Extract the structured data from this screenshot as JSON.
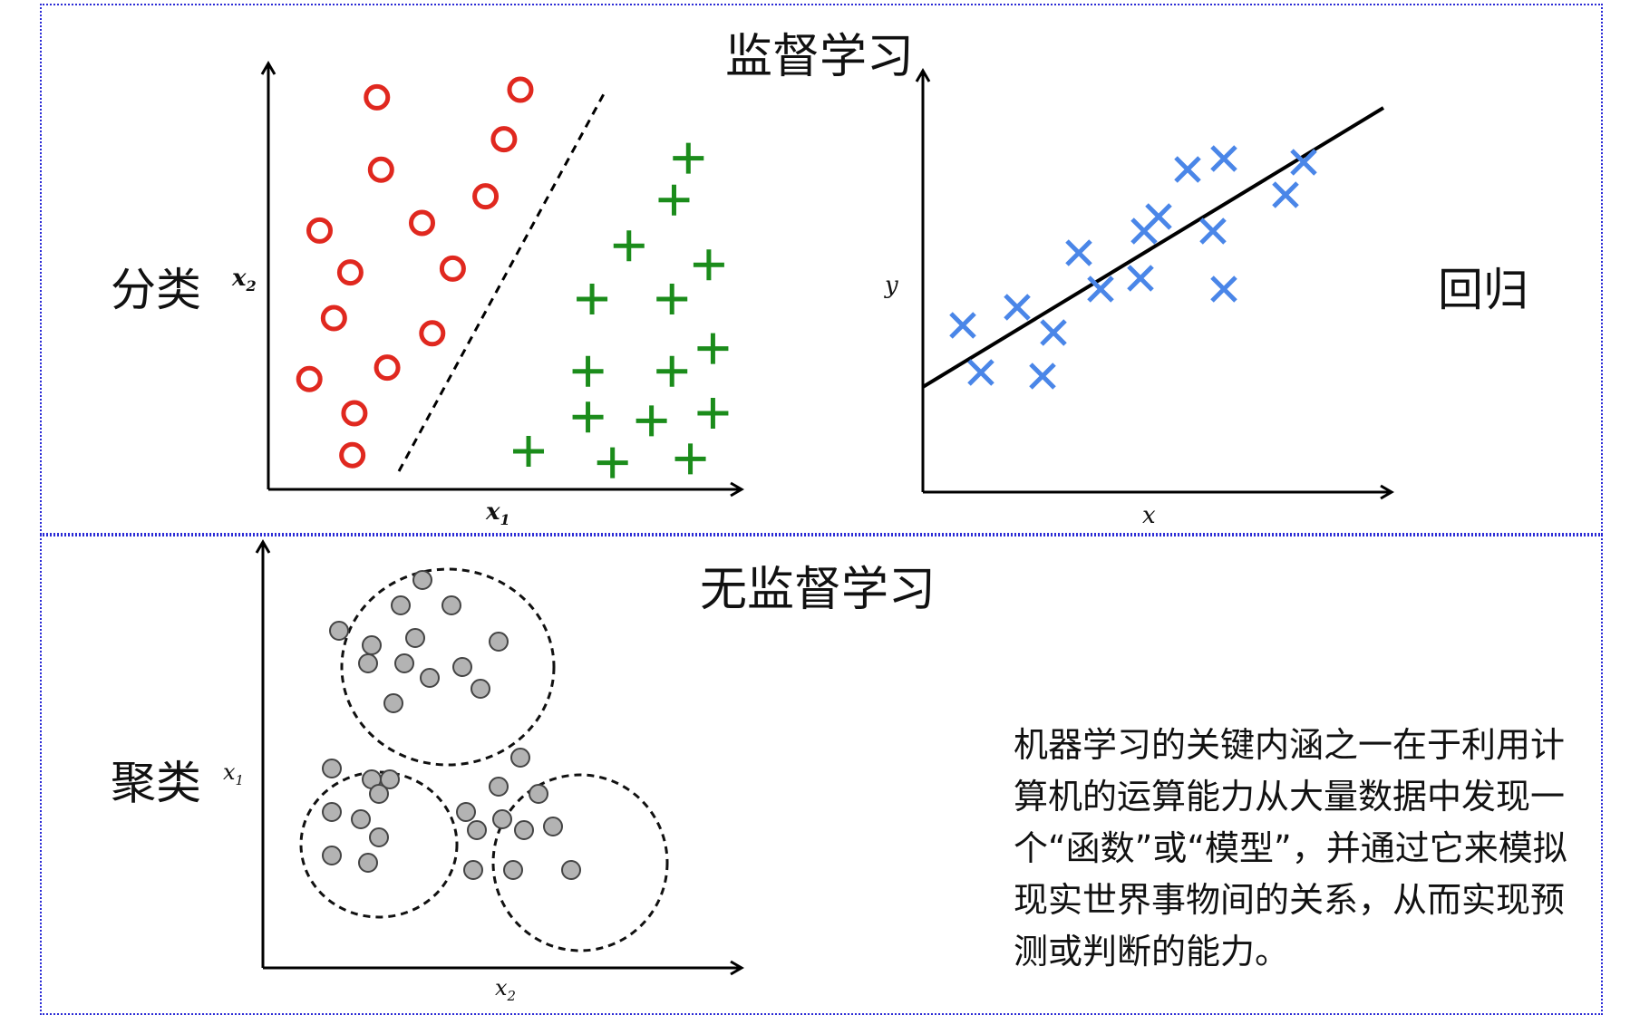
{
  "sections": {
    "supervised_title": "监督学习",
    "unsupervised_title": "无监督学习"
  },
  "classification": {
    "label": "分类",
    "x_label": "x",
    "x_sub": "1",
    "y_label": "x",
    "y_sub": "2",
    "class_circle_color": "#e0281f",
    "class_plus_color": "#1b8c1b"
  },
  "regression": {
    "label": "回归",
    "x_label": "x",
    "y_label": "y",
    "marker_color": "#4a86e8"
  },
  "clustering": {
    "label": "聚类",
    "x_label": "x",
    "x_sub": "2",
    "y_label": "x",
    "y_sub": "1",
    "point_color": "#b3b3b3"
  },
  "description": "机器学习的关键内涵之一在于利用计算机的运算能力从大量数据中发现一个“函数”或“模型”，并通过它来模拟现实世界事物间的关系，从而实现预测或判断的能力。",
  "chart_data": [
    {
      "type": "scatter",
      "title": "",
      "xlabel": "x1",
      "ylabel": "x2",
      "series": [
        {
          "name": "",
          "marker": "circle",
          "points": [
            [
              5.3,
              10.3
            ],
            [
              12.3,
              10.5
            ],
            [
              5.5,
              8.4
            ],
            [
              11.5,
              9.2
            ],
            [
              10.6,
              7.7
            ],
            [
              2.5,
              6.8
            ],
            [
              7.5,
              7.0
            ],
            [
              4.0,
              5.7
            ],
            [
              9.0,
              5.8
            ],
            [
              3.2,
              4.5
            ],
            [
              8.0,
              4.1
            ],
            [
              2.0,
              2.9
            ],
            [
              5.8,
              3.2
            ],
            [
              4.2,
              2.0
            ],
            [
              4.1,
              0.9
            ]
          ]
        },
        {
          "name": "",
          "marker": "plus",
          "points": [
            [
              20.5,
              8.7
            ],
            [
              19.8,
              7.6
            ],
            [
              17.6,
              6.4
            ],
            [
              21.5,
              5.9
            ],
            [
              15.8,
              5.0
            ],
            [
              19.7,
              5.0
            ],
            [
              21.7,
              3.7
            ],
            [
              15.6,
              3.1
            ],
            [
              19.7,
              3.1
            ],
            [
              15.6,
              1.9
            ],
            [
              18.7,
              1.8
            ],
            [
              21.7,
              2.0
            ],
            [
              12.7,
              1.0
            ],
            [
              16.8,
              0.7
            ],
            [
              20.6,
              0.8
            ]
          ]
        }
      ],
      "decision_boundary": "dashed line"
    },
    {
      "type": "scatter",
      "title": "",
      "xlabel": "x",
      "ylabel": "y",
      "points": [
        [
          1.1,
          4.6
        ],
        [
          1.6,
          3.3
        ],
        [
          2.6,
          5.1
        ],
        [
          3.3,
          3.2
        ],
        [
          3.6,
          4.4
        ],
        [
          4.3,
          6.6
        ],
        [
          4.9,
          5.6
        ],
        [
          6.0,
          5.9
        ],
        [
          6.1,
          7.2
        ],
        [
          6.5,
          7.6
        ],
        [
          7.3,
          8.9
        ],
        [
          8.0,
          7.2
        ],
        [
          8.3,
          9.2
        ],
        [
          8.3,
          5.6
        ],
        [
          10.0,
          8.2
        ],
        [
          10.5,
          9.1
        ]
      ],
      "fit_line": {
        "x": [
          0,
          12.7
        ],
        "y": [
          2.9,
          10.6
        ]
      }
    },
    {
      "type": "scatter",
      "title": "",
      "xlabel": "x2",
      "ylabel": "x1",
      "clusters": [
        {
          "points": [
            [
              4.4,
              10.7
            ],
            [
              3.8,
              10.0
            ],
            [
              5.2,
              10.0
            ],
            [
              2.1,
              9.3
            ],
            [
              3.0,
              8.9
            ],
            [
              4.2,
              9.1
            ],
            [
              6.5,
              9.0
            ],
            [
              3.9,
              8.4
            ],
            [
              2.9,
              8.4
            ],
            [
              5.5,
              8.3
            ],
            [
              4.6,
              8.0
            ],
            [
              6.0,
              7.7
            ],
            [
              3.6,
              7.3
            ]
          ]
        },
        {
          "points": [
            [
              1.9,
              5.5
            ],
            [
              3.0,
              5.2
            ],
            [
              3.5,
              5.2
            ],
            [
              3.2,
              4.8
            ],
            [
              1.9,
              4.3
            ],
            [
              2.7,
              4.1
            ],
            [
              3.2,
              3.6
            ],
            [
              1.9,
              3.1
            ],
            [
              2.9,
              2.9
            ]
          ]
        },
        {
          "points": [
            [
              7.1,
              5.8
            ],
            [
              6.5,
              5.0
            ],
            [
              7.6,
              4.8
            ],
            [
              5.6,
              4.3
            ],
            [
              6.6,
              4.1
            ],
            [
              5.9,
              3.8
            ],
            [
              7.2,
              3.8
            ],
            [
              8.0,
              3.9
            ],
            [
              5.8,
              2.7
            ],
            [
              6.9,
              2.7
            ],
            [
              8.5,
              2.7
            ]
          ]
        }
      ]
    }
  ]
}
